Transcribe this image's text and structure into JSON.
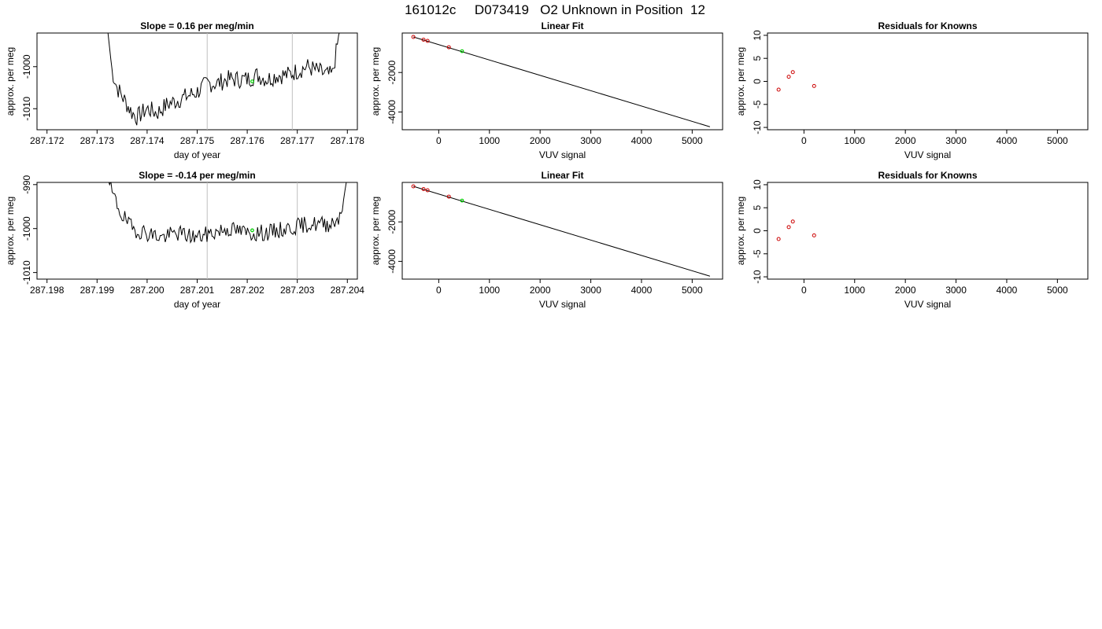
{
  "figure_title": "161012c     D073419   O2 Unknown in Position  12",
  "colors": {
    "line": "#000000",
    "known_point": "#cc0000",
    "unknown_point": "#00cc00",
    "marker_line": "#bfbfbf"
  },
  "chart_data": [
    {
      "id": "drift-top",
      "type": "line",
      "title": "Slope =  0.16  per meg/min",
      "xlabel": "day of year",
      "ylabel": "approx. per meg",
      "xlim": [
        287.1718,
        287.1782
      ],
      "ylim": [
        -1015,
        -992
      ],
      "xticks": [
        287.172,
        287.173,
        287.174,
        287.175,
        287.176,
        287.177,
        287.178
      ],
      "xtick_labels": [
        "287.172",
        "287.173",
        "287.174",
        "287.175",
        "287.176",
        "287.177",
        "287.178"
      ],
      "yticks": [
        -1010,
        -1000
      ],
      "ytick_labels": [
        "-1010",
        "-1000"
      ],
      "vlines": [
        287.1752,
        287.1769
      ],
      "x_start": 287.1732,
      "x_end": 287.1779,
      "profile": [
        [
          287.1732,
          -990
        ],
        [
          287.1733,
          -1001
        ],
        [
          287.1734,
          -1005
        ],
        [
          287.1735,
          -1007
        ],
        [
          287.1736,
          -1009
        ],
        [
          287.1737,
          -1011
        ],
        [
          287.1738,
          -1012
        ],
        [
          287.174,
          -1010
        ],
        [
          287.1742,
          -1011
        ],
        [
          287.1744,
          -1009
        ],
        [
          287.1746,
          -1008
        ],
        [
          287.1748,
          -1007
        ],
        [
          287.175,
          -1006
        ],
        [
          287.1752,
          -1004
        ],
        [
          287.1754,
          -1004
        ],
        [
          287.1756,
          -1003
        ],
        [
          287.1758,
          -1003
        ],
        [
          287.176,
          -1003
        ],
        [
          287.1762,
          -1002
        ],
        [
          287.1764,
          -1003
        ],
        [
          287.1766,
          -1002
        ],
        [
          287.1768,
          -1002
        ],
        [
          287.177,
          -1001
        ],
        [
          287.1772,
          -1000
        ],
        [
          287.1774,
          -1001
        ],
        [
          287.1776,
          -1002
        ],
        [
          287.1777,
          -1002
        ],
        [
          287.1778,
          -995
        ],
        [
          287.1779,
          -988
        ]
      ],
      "noise_amplitude": 2.2,
      "seed": 7,
      "highlight": {
        "x": 287.1761,
        "y": -1003.5
      }
    },
    {
      "id": "fit-top",
      "type": "scatter",
      "title": "Linear Fit",
      "xlabel": "VUV signal",
      "ylabel": "approx. per meg",
      "xlim": [
        -720,
        5600
      ],
      "ylim": [
        -4900,
        0
      ],
      "xticks": [
        0,
        1000,
        2000,
        3000,
        4000,
        5000
      ],
      "xtick_labels": [
        "0",
        "1000",
        "2000",
        "3000",
        "4000",
        "5000"
      ],
      "yticks": [
        -4000,
        -2000
      ],
      "ytick_labels": [
        "-4000",
        "-2000"
      ],
      "fit_line": {
        "x": [
          -500,
          5350
        ],
        "y": [
          -200,
          -4750
        ]
      },
      "points": [
        {
          "x": -500,
          "y": -200
        },
        {
          "x": -300,
          "y": -340
        },
        {
          "x": -220,
          "y": -400
        },
        {
          "x": 200,
          "y": -720
        }
      ],
      "highlight": {
        "x": 460,
        "y": -920
      }
    },
    {
      "id": "resid-top",
      "type": "scatter",
      "title": "Residuals for Knowns",
      "xlabel": "VUV signal",
      "ylabel": "approx. per meg",
      "xlim": [
        -720,
        5600
      ],
      "ylim": [
        -10.5,
        10.5
      ],
      "xticks": [
        0,
        1000,
        2000,
        3000,
        4000,
        5000
      ],
      "xtick_labels": [
        "0",
        "1000",
        "2000",
        "3000",
        "4000",
        "5000"
      ],
      "yticks": [
        -10,
        -5,
        0,
        5,
        10
      ],
      "ytick_labels": [
        "-10",
        "-5",
        "0",
        "5",
        "10"
      ],
      "points": [
        {
          "x": -500,
          "y": -1.8
        },
        {
          "x": -300,
          "y": 1.0
        },
        {
          "x": -220,
          "y": 2.0
        },
        {
          "x": 200,
          "y": -1.0
        }
      ]
    },
    {
      "id": "drift-bottom",
      "type": "line",
      "title": "Slope =  -0.14  per meg/min",
      "xlabel": "day of year",
      "ylabel": "approx. per meg",
      "xlim": [
        287.1978,
        287.2042
      ],
      "ylim": [
        -1011.5,
        -989.5
      ],
      "xticks": [
        287.198,
        287.199,
        287.2,
        287.201,
        287.202,
        287.203,
        287.204
      ],
      "xtick_labels": [
        "287.198",
        "287.199",
        "287.200",
        "287.201",
        "287.202",
        "287.203",
        "287.204"
      ],
      "yticks": [
        -1010,
        -1000,
        -990
      ],
      "ytick_labels": [
        "-1010",
        "-1000",
        "-990"
      ],
      "vlines": [
        287.2012,
        287.203
      ],
      "x_start": 287.1992,
      "x_end": 287.204,
      "profile": [
        [
          287.1992,
          -988
        ],
        [
          287.1993,
          -992
        ],
        [
          287.1995,
          -997
        ],
        [
          287.1997,
          -1000
        ],
        [
          287.2,
          -1001
        ],
        [
          287.2003,
          -1002
        ],
        [
          287.2006,
          -1001
        ],
        [
          287.201,
          -1002
        ],
        [
          287.2013,
          -1001
        ],
        [
          287.2016,
          -1000
        ],
        [
          287.202,
          -1001
        ],
        [
          287.2024,
          -1001
        ],
        [
          287.2028,
          -1000
        ],
        [
          287.2032,
          -999
        ],
        [
          287.2036,
          -999
        ],
        [
          287.2038,
          -998
        ],
        [
          287.2039,
          -995
        ],
        [
          287.204,
          -988
        ]
      ],
      "noise_amplitude": 1.9,
      "seed": 19,
      "highlight": {
        "x": 287.2021,
        "y": -1000.4
      }
    },
    {
      "id": "fit-bottom",
      "type": "scatter",
      "title": "Linear Fit",
      "xlabel": "VUV signal",
      "ylabel": "approx. per meg",
      "xlim": [
        -720,
        5600
      ],
      "ylim": [
        -4900,
        0
      ],
      "xticks": [
        0,
        1000,
        2000,
        3000,
        4000,
        5000
      ],
      "xtick_labels": [
        "0",
        "1000",
        "2000",
        "3000",
        "4000",
        "5000"
      ],
      "yticks": [
        -4000,
        -2000
      ],
      "ytick_labels": [
        "-4000",
        "-2000"
      ],
      "fit_line": {
        "x": [
          -500,
          5350
        ],
        "y": [
          -200,
          -4750
        ]
      },
      "points": [
        {
          "x": -500,
          "y": -200
        },
        {
          "x": -300,
          "y": -340
        },
        {
          "x": -220,
          "y": -400
        },
        {
          "x": 200,
          "y": -720
        }
      ],
      "highlight": {
        "x": 460,
        "y": -920
      }
    },
    {
      "id": "resid-bottom",
      "type": "scatter",
      "title": "Residuals for Knowns",
      "xlabel": "VUV signal",
      "ylabel": "approx. per meg",
      "xlim": [
        -720,
        5600
      ],
      "ylim": [
        -10.5,
        10.5
      ],
      "xticks": [
        0,
        1000,
        2000,
        3000,
        4000,
        5000
      ],
      "xtick_labels": [
        "0",
        "1000",
        "2000",
        "3000",
        "4000",
        "5000"
      ],
      "yticks": [
        -10,
        -5,
        0,
        5,
        10
      ],
      "ytick_labels": [
        "-10",
        "-5",
        "0",
        "5",
        "10"
      ],
      "points": [
        {
          "x": -500,
          "y": -1.8
        },
        {
          "x": -300,
          "y": 0.8
        },
        {
          "x": -220,
          "y": 2.0
        },
        {
          "x": 200,
          "y": -1.0
        }
      ]
    }
  ]
}
